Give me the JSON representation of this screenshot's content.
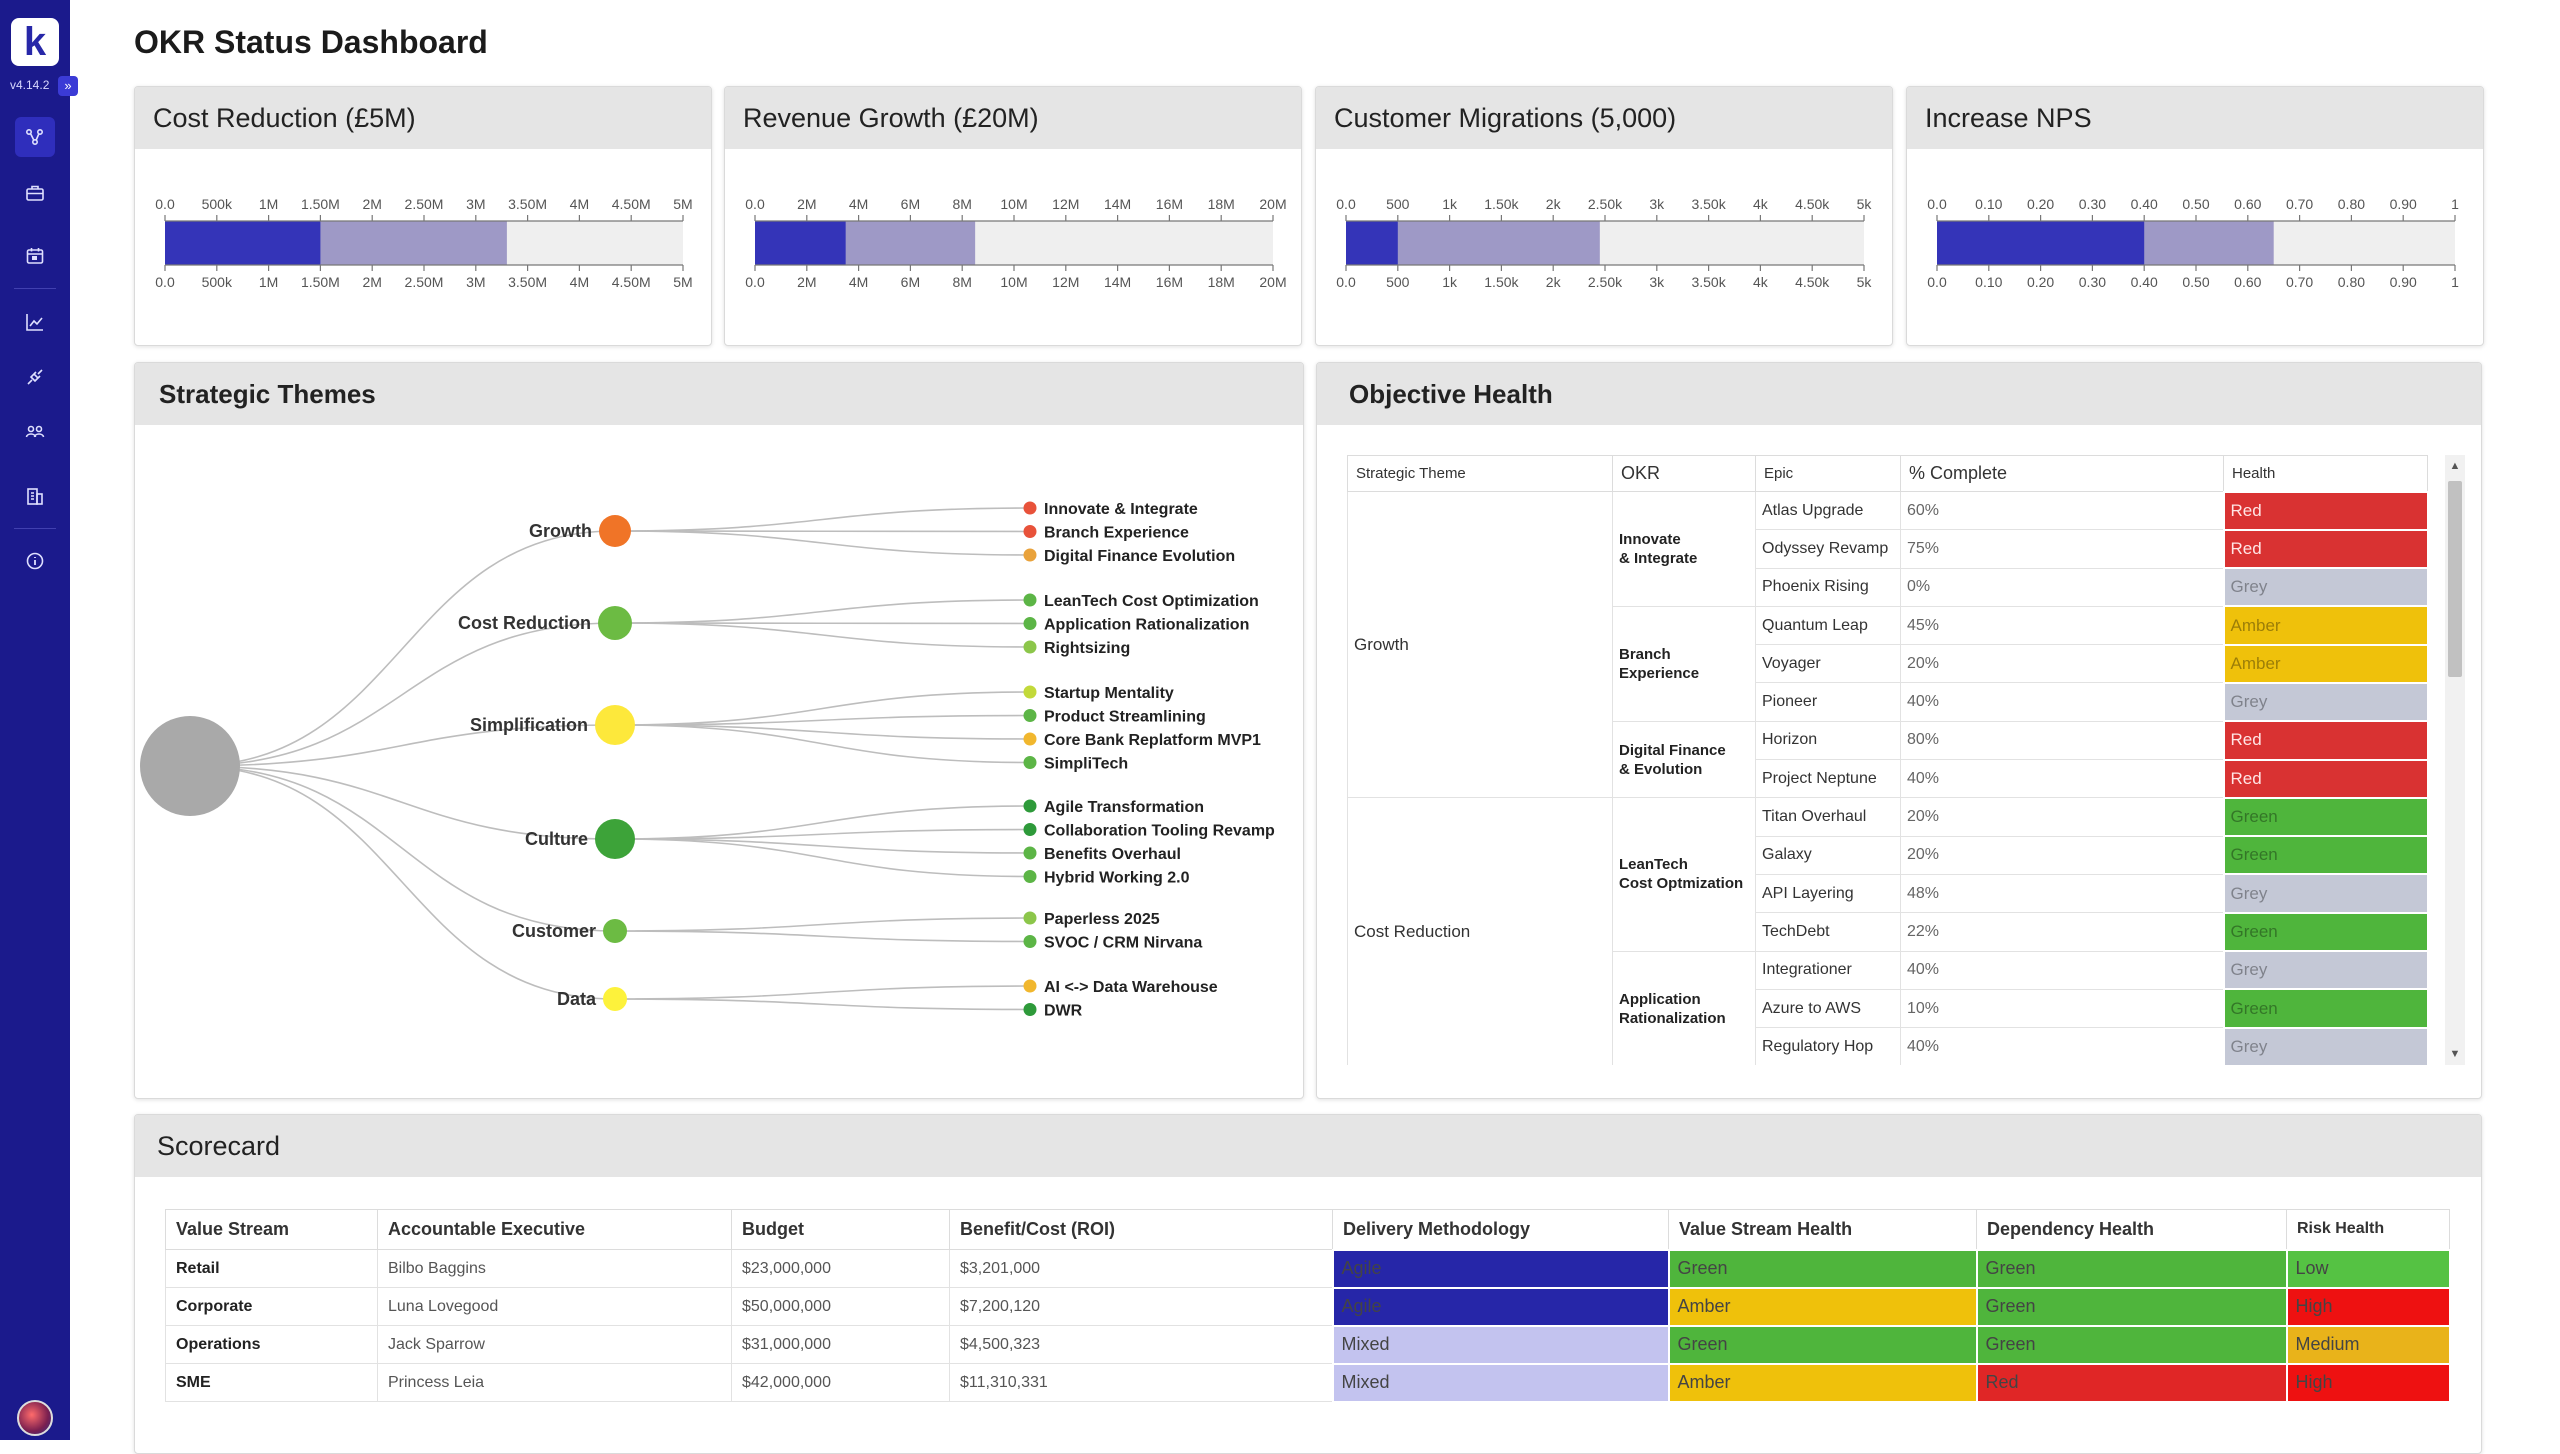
{
  "app": {
    "logo_letter": "k",
    "version": "v4.14.2",
    "expand_glyph": "»",
    "nav": [
      {
        "name": "okr-icon"
      },
      {
        "name": "portfolio-icon"
      },
      {
        "name": "calendar-icon"
      },
      {
        "name": "chart-icon"
      },
      {
        "name": "integration-icon"
      },
      {
        "name": "teams-icon"
      },
      {
        "name": "building-icon"
      },
      {
        "name": "info-icon"
      }
    ]
  },
  "page": {
    "title": "OKR Status Dashboard"
  },
  "kpis": [
    {
      "title": "Cost Reduction (£5M)",
      "ticks": [
        "0.0",
        "500k",
        "1M",
        "1.50M",
        "2M",
        "2.50M",
        "3M",
        "3.50M",
        "4M",
        "4.50M",
        "5M"
      ],
      "actual": 0.3,
      "target": 0.66
    },
    {
      "title": "Revenue Growth (£20M)",
      "ticks": [
        "0.0",
        "2M",
        "4M",
        "6M",
        "8M",
        "10M",
        "12M",
        "14M",
        "16M",
        "18M",
        "20M"
      ],
      "actual": 0.175,
      "target": 0.425
    },
    {
      "title": "Customer Migrations (5,000)",
      "ticks": [
        "0.0",
        "500",
        "1k",
        "1.50k",
        "2k",
        "2.50k",
        "3k",
        "3.50k",
        "4k",
        "4.50k",
        "5k"
      ],
      "actual": 0.1,
      "target": 0.49
    },
    {
      "title": "Increase NPS",
      "ticks": [
        "0.0",
        "0.10",
        "0.20",
        "0.30",
        "0.40",
        "0.50",
        "0.60",
        "0.70",
        "0.80",
        "0.90",
        "1"
      ],
      "actual": 0.4,
      "target": 0.65
    }
  ],
  "strategic_themes": {
    "title": "Strategic Themes",
    "themes": [
      {
        "name": "Growth",
        "color": "#f07427",
        "epics": [
          {
            "label": "Innovate & Integrate",
            "color": "#e8523a"
          },
          {
            "label": "Branch Experience",
            "color": "#e8523a"
          },
          {
            "label": "Digital Finance Evolution",
            "color": "#e9a23b"
          }
        ]
      },
      {
        "name": "Cost Reduction",
        "color": "#6cbb43",
        "epics": [
          {
            "label": "LeanTech Cost Optimization",
            "color": "#5cb546"
          },
          {
            "label": "Application Rationalization",
            "color": "#5cb546"
          },
          {
            "label": "Rightsizing",
            "color": "#8cc64a"
          }
        ]
      },
      {
        "name": "Simplification",
        "color": "#fde83b",
        "epics": [
          {
            "label": "Startup Mentality",
            "color": "#c2d93a"
          },
          {
            "label": "Product Streamlining",
            "color": "#5cb546"
          },
          {
            "label": "Core Bank Replatform MVP1",
            "color": "#f1b72e"
          },
          {
            "label": "SimpliTech",
            "color": "#5cb546"
          }
        ]
      },
      {
        "name": "Culture",
        "color": "#3da339",
        "epics": [
          {
            "label": "Agile Transformation",
            "color": "#2e9a3a"
          },
          {
            "label": "Collaboration Tooling Revamp",
            "color": "#2e9a3a"
          },
          {
            "label": "Benefits Overhaul",
            "color": "#5cb546"
          },
          {
            "label": "Hybrid Working 2.0",
            "color": "#5cb546"
          }
        ]
      },
      {
        "name": "Customer",
        "color": "#6cbb43",
        "epics": [
          {
            "label": "Paperless 2025",
            "color": "#8cc64a"
          },
          {
            "label": "SVOC / CRM Nirvana",
            "color": "#5cb546"
          }
        ]
      },
      {
        "name": "Data",
        "color": "#fdf23b",
        "epics": [
          {
            "label": "AI <-> Data Warehouse",
            "color": "#f1b72e"
          },
          {
            "label": "DWR",
            "color": "#2e9a3a"
          }
        ]
      }
    ]
  },
  "objective_health": {
    "title": "Objective Health",
    "columns": [
      "Strategic Theme",
      "OKR",
      "Epic",
      "% Complete",
      "Health"
    ],
    "groups": [
      {
        "theme": "Growth",
        "okrs": [
          {
            "okr": "Innovate\n& Integrate",
            "epics": [
              {
                "epic": "Atlas Upgrade",
                "pct": "60%",
                "health": "Red"
              },
              {
                "epic": "Odyssey Revamp",
                "pct": "75%",
                "health": "Red"
              },
              {
                "epic": "Phoenix Rising",
                "pct": "0%",
                "health": "Grey"
              }
            ]
          },
          {
            "okr": "Branch\nExperience",
            "epics": [
              {
                "epic": "Quantum Leap",
                "pct": "45%",
                "health": "Amber"
              },
              {
                "epic": "Voyager",
                "pct": "20%",
                "health": "Amber"
              },
              {
                "epic": "Pioneer",
                "pct": "40%",
                "health": "Grey"
              }
            ]
          },
          {
            "okr": "Digital Finance\n& Evolution",
            "epics": [
              {
                "epic": "Horizon",
                "pct": "80%",
                "health": "Red"
              },
              {
                "epic": "Project Neptune",
                "pct": "40%",
                "health": "Red"
              }
            ]
          }
        ]
      },
      {
        "theme": "Cost Reduction",
        "okrs": [
          {
            "okr": "LeanTech\nCost Optmization",
            "epics": [
              {
                "epic": "Titan Overhaul",
                "pct": "20%",
                "health": "Green"
              },
              {
                "epic": "Galaxy",
                "pct": "20%",
                "health": "Green"
              },
              {
                "epic": "API Layering",
                "pct": "48%",
                "health": "Grey"
              },
              {
                "epic": "TechDebt",
                "pct": "22%",
                "health": "Green"
              }
            ]
          },
          {
            "okr": "Application\nRationalization",
            "epics": [
              {
                "epic": "Integrationer",
                "pct": "40%",
                "health": "Grey"
              },
              {
                "epic": "Azure to AWS",
                "pct": "10%",
                "health": "Green"
              },
              {
                "epic": "Regulatory Hop",
                "pct": "40%",
                "health": "Grey"
              }
            ]
          }
        ]
      }
    ]
  },
  "scorecard": {
    "title": "Scorecard",
    "columns": [
      "Value Stream",
      "Accountable Executive",
      "Budget",
      "Benefit/Cost (ROI)",
      "Delivery Methodology",
      "Value Stream Health",
      "Dependency Health",
      "Risk Health"
    ],
    "rows": [
      {
        "stream": "Retail",
        "exec": "Bilbo Baggins",
        "budget": "$23,000,000",
        "roi": "$3,201,000",
        "method": "Agile",
        "vs_health": "Green",
        "dep_health": "Green",
        "risk": "Low"
      },
      {
        "stream": "Corporate",
        "exec": "Luna Lovegood",
        "budget": "$50,000,000",
        "roi": "$7,200,120",
        "method": "Agile",
        "vs_health": "Amber",
        "dep_health": "Green",
        "risk": "High"
      },
      {
        "stream": "Operations",
        "exec": "Jack Sparrow",
        "budget": "$31,000,000",
        "roi": "$4,500,323",
        "method": "Mixed",
        "vs_health": "Green",
        "dep_health": "Green",
        "risk": "Medium"
      },
      {
        "stream": "SME",
        "exec": "Princess Leia",
        "budget": "$42,000,000",
        "roi": "$11,310,331",
        "method": "Mixed",
        "vs_health": "Amber",
        "dep_health": "Red",
        "risk": "High"
      }
    ]
  },
  "colors": {
    "sidebar": "#1b1a8c",
    "bullet_actual": "#3434b8",
    "bullet_target": "#9e99c6",
    "bullet_bg": "#efefef"
  }
}
